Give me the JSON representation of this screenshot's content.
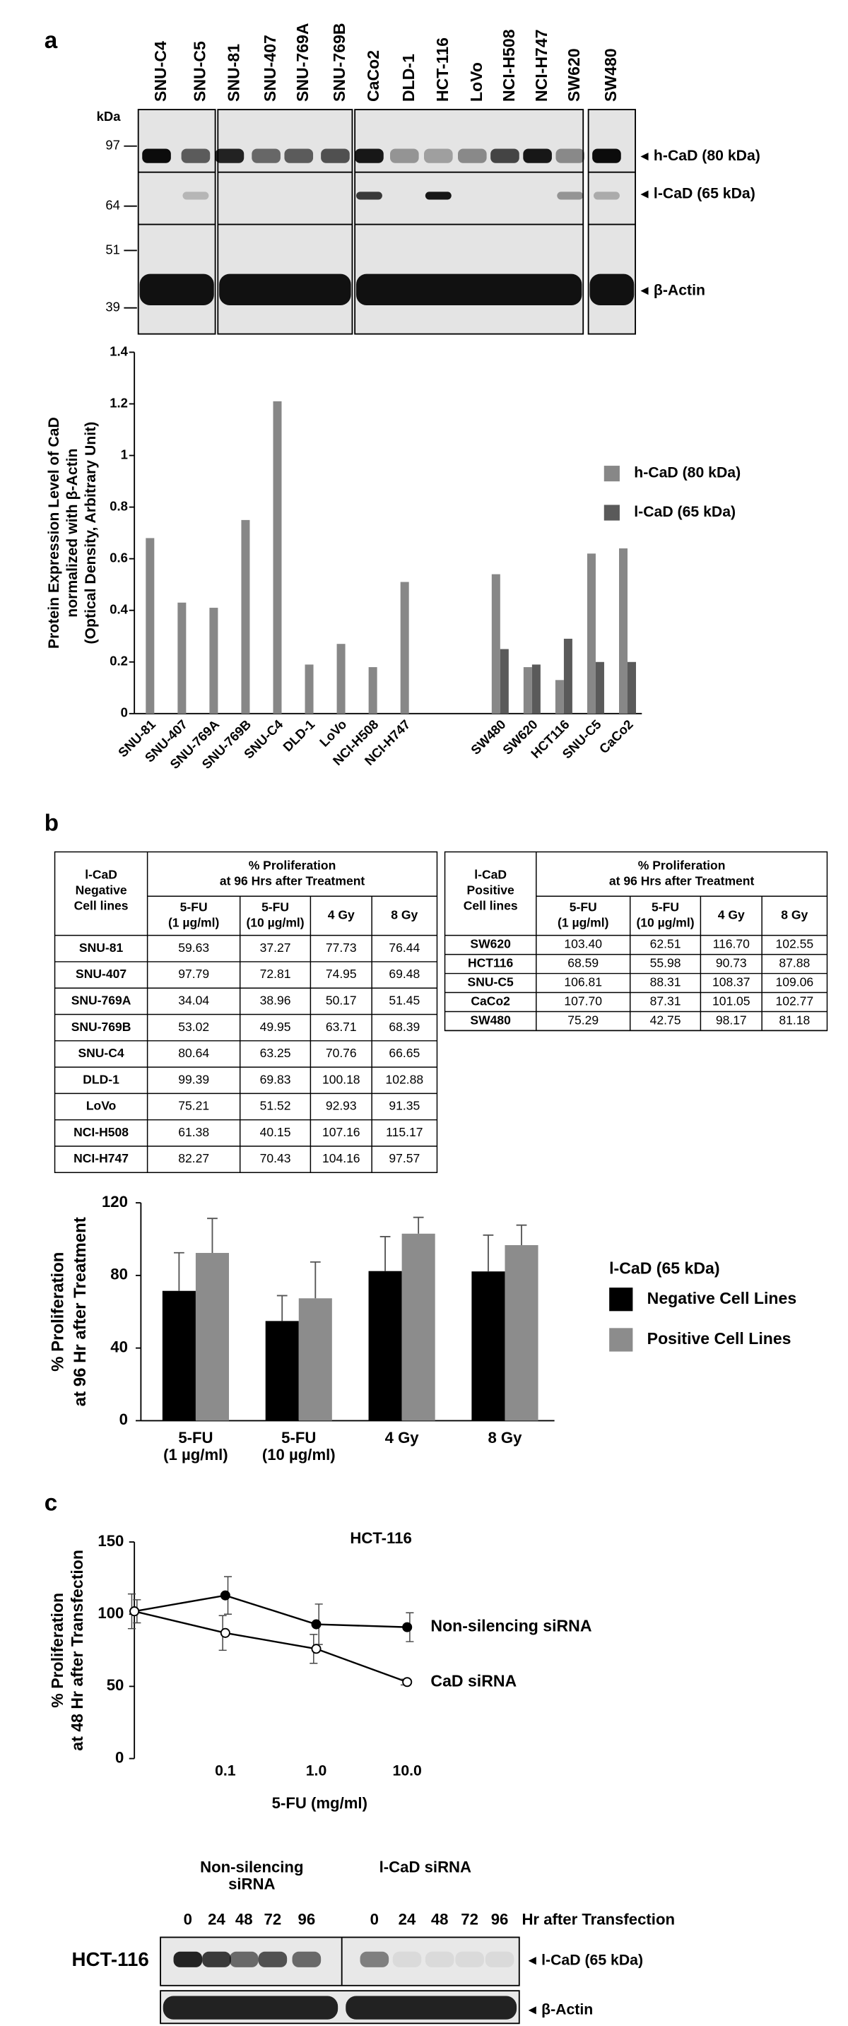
{
  "panel_labels": [
    "a",
    "b",
    "c"
  ],
  "blot_a": {
    "kda_label": "kDa",
    "markers": [
      97,
      64,
      51,
      39
    ],
    "lanes": [
      "SNU-C4",
      "SNU-C5",
      "SNU-81",
      "SNU-407",
      "SNU-769A",
      "SNU-769B",
      "CaCo2",
      "DLD-1",
      "HCT-116",
      "LoVo",
      "NCI-H508",
      "NCI-H747",
      "SW620",
      "SW480"
    ],
    "bands": [
      "h-CaD (80 kDa)",
      "l-CaD (65 kDa)",
      "β-Actin"
    ]
  },
  "chart_data": [
    {
      "type": "bar",
      "ylabel": [
        "Protein Expression Level of CaD",
        "normalized with β-Actin",
        "(Optical Density, Arbitrary Unit)"
      ],
      "categories": [
        "SNU-81",
        "SNU-407",
        "SNU-769A",
        "SNU-769B",
        "SNU-C4",
        "DLD-1",
        "LoVo",
        "NCI-H508",
        "NCI-H747",
        null,
        null,
        "SW480",
        "SW620",
        "HCT116",
        "SNU-C5",
        "CaCo2"
      ],
      "series": [
        {
          "name": "h-CaD (80 kDa)",
          "color": "#878787",
          "values": [
            0.68,
            0.43,
            0.41,
            0.75,
            1.21,
            0.19,
            0.27,
            0.18,
            0.51,
            null,
            null,
            0.54,
            0.18,
            0.13,
            0.62,
            0.64
          ]
        },
        {
          "name": "l-CaD (65 kDa)",
          "color": "#5a5a5a",
          "values": [
            null,
            null,
            null,
            null,
            null,
            null,
            null,
            null,
            null,
            null,
            null,
            0.25,
            0.19,
            0.29,
            0.2,
            0.2
          ]
        }
      ],
      "ylim": [
        0,
        1.4
      ],
      "yticks": [
        0,
        0.2,
        0.4,
        0.6,
        0.8,
        1,
        1.2,
        1.4
      ]
    },
    {
      "type": "bar",
      "ylabel": [
        "% Proliferation",
        "at 96 Hr after Treatment"
      ],
      "categories": [
        [
          "5-FU",
          "(1 µg/ml)"
        ],
        [
          "5-FU",
          "(10 µg/ml)"
        ],
        [
          "4 Gy"
        ],
        [
          "8 Gy"
        ]
      ],
      "legend_title": "l-CaD (65 kDa)",
      "series": [
        {
          "name": "Negative Cell Lines",
          "color": "#000000",
          "values": [
            71.5,
            54.9,
            82.4,
            82.2
          ],
          "errors": [
            21,
            14,
            19,
            20
          ]
        },
        {
          "name": "Positive Cell Lines",
          "color": "#8c8c8c",
          "values": [
            92.4,
            67.4,
            103,
            96.7
          ],
          "errors": [
            19,
            20,
            9,
            11
          ]
        }
      ],
      "ylim": [
        0,
        120
      ],
      "yticks": [
        0,
        40,
        80,
        120
      ]
    },
    {
      "type": "line",
      "title": "HCT-116",
      "ylabel": [
        "% Proliferation",
        "at 48 Hr after Transfection"
      ],
      "xlabel": "5-FU (mg/ml)",
      "categories": [
        null,
        "0.1",
        "1.0",
        "10.0"
      ],
      "series": [
        {
          "name": "Non-silencing  siRNA",
          "color": "#000000",
          "marker": "filled",
          "values": [
            102,
            113,
            93,
            91
          ],
          "errors": [
            8,
            13,
            14,
            10
          ]
        },
        {
          "name": "CaD siRNA",
          "color": "#000000",
          "marker": "open",
          "values": [
            102,
            87,
            76,
            53
          ],
          "errors": [
            12,
            12,
            10,
            2
          ]
        }
      ],
      "ylim": [
        0,
        150
      ],
      "yticks": [
        0,
        50,
        100,
        150
      ]
    }
  ],
  "tables": [
    {
      "cell_lines_header": [
        "l-CaD",
        "Negative",
        "Cell lines"
      ],
      "group_header": [
        "% Proliferation",
        "at 96 Hrs after Treatment"
      ],
      "columns": [
        [
          "5-FU",
          "(1 µg/ml)"
        ],
        [
          "5-FU",
          "(10 µg/ml)"
        ],
        [
          "4 Gy"
        ],
        [
          "8 Gy"
        ]
      ],
      "rows": [
        [
          "SNU-81",
          "59.63",
          "37.27",
          "77.73",
          "76.44"
        ],
        [
          "SNU-407",
          "97.79",
          "72.81",
          "74.95",
          "69.48"
        ],
        [
          "SNU-769A",
          "34.04",
          "38.96",
          "50.17",
          "51.45"
        ],
        [
          "SNU-769B",
          "53.02",
          "49.95",
          "63.71",
          "68.39"
        ],
        [
          "SNU-C4",
          "80.64",
          "63.25",
          "70.76",
          "66.65"
        ],
        [
          "DLD-1",
          "99.39",
          "69.83",
          "100.18",
          "102.88"
        ],
        [
          "LoVo",
          "75.21",
          "51.52",
          "92.93",
          "91.35"
        ],
        [
          "NCI-H508",
          "61.38",
          "40.15",
          "107.16",
          "115.17"
        ],
        [
          "NCI-H747",
          "82.27",
          "70.43",
          "104.16",
          "97.57"
        ]
      ]
    },
    {
      "cell_lines_header": [
        "l-CaD",
        "Positive",
        "Cell lines"
      ],
      "group_header": [
        "% Proliferation",
        "at 96 Hrs after Treatment"
      ],
      "columns": [
        [
          "5-FU",
          "(1 µg/ml)"
        ],
        [
          "5-FU",
          "(10 µg/ml)"
        ],
        [
          "4 Gy"
        ],
        [
          "8 Gy"
        ]
      ],
      "rows": [
        [
          "SW620",
          "103.40",
          "62.51",
          "116.70",
          "102.55"
        ],
        [
          "HCT116",
          "68.59",
          "55.98",
          "90.73",
          "87.88"
        ],
        [
          "SNU-C5",
          "106.81",
          "88.31",
          "108.37",
          "109.06"
        ],
        [
          "CaCo2",
          "107.70",
          "87.31",
          "101.05",
          "102.77"
        ],
        [
          "SW480",
          "75.29",
          "42.75",
          "98.17",
          "81.18"
        ]
      ]
    }
  ],
  "blot_c": {
    "groups": [
      [
        "Non-silencing",
        "siRNA"
      ],
      [
        "l-CaD siRNA"
      ]
    ],
    "times": [
      "0",
      "24",
      "48",
      "72",
      "96",
      "0",
      "24",
      "48",
      "72",
      "96"
    ],
    "time_label": "Hr after Transfection",
    "cell_line": "HCT-116",
    "bands": [
      "l-CaD (65 kDa)",
      "β-Actin"
    ]
  }
}
